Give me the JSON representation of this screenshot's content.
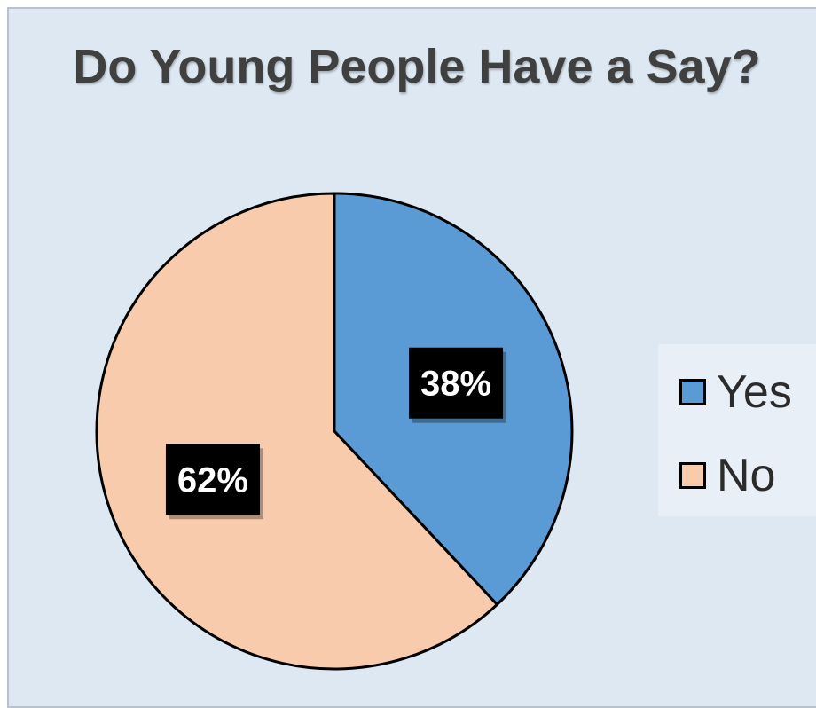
{
  "chart_data": {
    "type": "pie",
    "title": "Do Young People Have a Say?",
    "categories": [
      "Yes",
      "No"
    ],
    "values": [
      38,
      62
    ],
    "data_labels": [
      "38%",
      "62%"
    ],
    "colors": [
      "#5b9bd5",
      "#f8cbad"
    ],
    "legend": {
      "position": "right",
      "entries": [
        {
          "label": "Yes",
          "color": "#5b9bd5"
        },
        {
          "label": "No",
          "color": "#f8cbad"
        }
      ]
    }
  }
}
